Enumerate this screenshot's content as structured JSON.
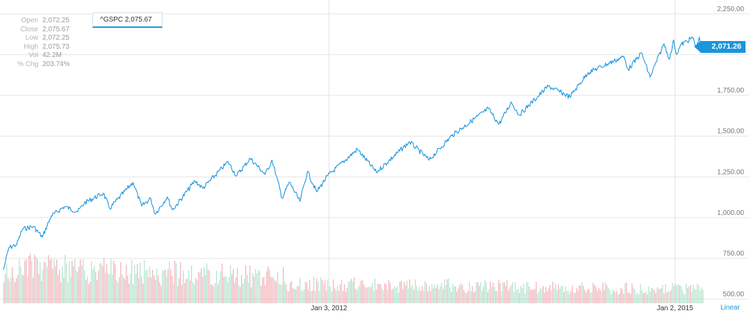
{
  "stats": [
    {
      "label": "Open",
      "value": "2,072.25"
    },
    {
      "label": "Close",
      "value": "2,075.67"
    },
    {
      "label": "Low",
      "value": "2,072.25"
    },
    {
      "label": "High",
      "value": "2,075.73"
    },
    {
      "label": "Vol",
      "value": "42.2M"
    },
    {
      "label": "% Chg",
      "value": "203.74%"
    }
  ],
  "legend": {
    "symbol_label": "^GSPC 2,075.67"
  },
  "price_tag": "2,071.26",
  "scale_toggle": "Linear",
  "colors": {
    "line": "#1b95dc",
    "volume_up": "#a8e0c6",
    "volume_down": "#f0a8b0",
    "grid": "#e4e4e4"
  },
  "chart_data": {
    "type": "line",
    "series": [
      {
        "name": "^GSPC",
        "points": [
          [
            "2009-03-09",
            680
          ],
          [
            "2009-03-26",
            815
          ],
          [
            "2009-04-20",
            835
          ],
          [
            "2009-05-08",
            930
          ],
          [
            "2009-06-12",
            945
          ],
          [
            "2009-07-10",
            880
          ],
          [
            "2009-08-07",
            1010
          ],
          [
            "2009-09-18",
            1068
          ],
          [
            "2009-10-30",
            1036
          ],
          [
            "2009-11-20",
            1090
          ],
          [
            "2010-01-19",
            1150
          ],
          [
            "2010-02-08",
            1056
          ],
          [
            "2010-04-23",
            1217
          ],
          [
            "2010-05-20",
            1071
          ],
          [
            "2010-06-18",
            1117
          ],
          [
            "2010-07-02",
            1022
          ],
          [
            "2010-08-09",
            1127
          ],
          [
            "2010-08-26",
            1047
          ],
          [
            "2010-11-05",
            1225
          ],
          [
            "2010-11-30",
            1180
          ],
          [
            "2011-02-18",
            1343
          ],
          [
            "2011-03-16",
            1256
          ],
          [
            "2011-04-29",
            1363
          ],
          [
            "2011-06-15",
            1265
          ],
          [
            "2011-07-07",
            1353
          ],
          [
            "2011-08-08",
            1119
          ],
          [
            "2011-08-31",
            1218
          ],
          [
            "2011-10-03",
            1099
          ],
          [
            "2011-10-27",
            1284
          ],
          [
            "2011-11-25",
            1158
          ],
          [
            "2011-12-30",
            1257
          ],
          [
            "2012-04-02",
            1419
          ],
          [
            "2012-06-01",
            1278
          ],
          [
            "2012-09-14",
            1465
          ],
          [
            "2012-11-15",
            1353
          ],
          [
            "2013-01-25",
            1502
          ],
          [
            "2013-05-21",
            1669
          ],
          [
            "2013-06-24",
            1573
          ],
          [
            "2013-08-02",
            1709
          ],
          [
            "2013-08-27",
            1630
          ],
          [
            "2013-11-27",
            1807
          ],
          [
            "2014-02-03",
            1741
          ],
          [
            "2014-04-02",
            1890
          ],
          [
            "2014-07-24",
            1988
          ],
          [
            "2014-08-07",
            1909
          ],
          [
            "2014-09-18",
            2011
          ],
          [
            "2014-10-15",
            1862
          ],
          [
            "2014-11-28",
            2067
          ],
          [
            "2014-12-16",
            1973
          ],
          [
            "2014-12-29",
            2090
          ],
          [
            "2015-01-06",
            2003
          ],
          [
            "2015-01-22",
            2063
          ],
          [
            "2015-02-27",
            2104
          ],
          [
            "2015-03-11",
            2040
          ],
          [
            "2015-03-20",
            2108
          ],
          [
            "2015-03-26",
            2057
          ],
          [
            "2015-04-01",
            2071
          ]
        ]
      }
    ],
    "volume_series": {
      "name": "Volume",
      "visible": true
    },
    "xlim": [
      "2009-03-09",
      "2015-04-01"
    ],
    "ylim": [
      500,
      2250
    ],
    "yticks": [
      500,
      750,
      1000,
      1250,
      1500,
      1750,
      2000,
      2250
    ],
    "ytick_labels": [
      "500.00",
      "750.00",
      "1,000.00",
      "1,250.00",
      "1,500.00",
      "1,750.00",
      "2,000.00",
      "2,250.00"
    ],
    "xticks": [
      {
        "date": "2012-01-03",
        "label": "Jan 3, 2012"
      },
      {
        "date": "2015-01-02",
        "label": "Jan 2, 2015"
      }
    ],
    "grid": true,
    "yaxis_side": "right"
  }
}
